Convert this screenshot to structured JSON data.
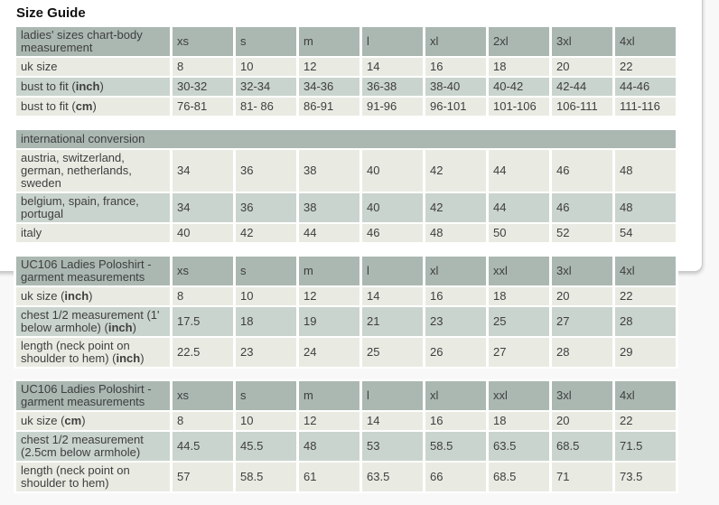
{
  "header": {
    "title": "Size Guide"
  },
  "colors": {
    "page_bg": "#f8f8f8",
    "panel_bg": "#ffffff",
    "panel_border": "#c9c9c9",
    "table_header_bg": "#abb8b2",
    "row_light": "#e9ebe3",
    "row_medium": "#cad4ce",
    "text": "#3e3e3e",
    "title": "#111111"
  },
  "tables": [
    {
      "name": "ladies-sizes-body-measurement",
      "header_label": [
        {
          "t": "ladies' sizes chart-body\nmeasurement"
        }
      ],
      "columns": [
        "xs",
        "s",
        "m",
        "l",
        "xl",
        "2xl",
        "3xl",
        "4xl"
      ],
      "rows": [
        {
          "label": [
            {
              "t": "uk size"
            }
          ],
          "values": [
            "8",
            "10",
            "12",
            "14",
            "16",
            "18",
            "20",
            "22"
          ]
        },
        {
          "label": [
            {
              "t": "bust to fit ("
            },
            {
              "t": "inch",
              "b": true
            },
            {
              "t": ")"
            }
          ],
          "values": [
            "30-32",
            "32-34",
            "34-36",
            "36-38",
            "38-40",
            "40-42",
            "42-44",
            "44-46"
          ]
        },
        {
          "label": [
            {
              "t": "bust to fit ("
            },
            {
              "t": "cm",
              "b": true
            },
            {
              "t": ")"
            }
          ],
          "values": [
            "76-81",
            "81- 86",
            "86-91",
            "91-96",
            "96-101",
            "101-106",
            "106-111",
            "111-116"
          ]
        }
      ]
    },
    {
      "name": "international-conversion",
      "full_header": [
        {
          "t": "international conversion"
        }
      ],
      "rows": [
        {
          "label": [
            {
              "t": "austria, switzerland,\ngerman, netherlands,\nsweden"
            }
          ],
          "values": [
            "34",
            "36",
            "38",
            "40",
            "42",
            "44",
            "46",
            "48"
          ]
        },
        {
          "label": [
            {
              "t": "belgium, spain, france,\nportugal"
            }
          ],
          "values": [
            "34",
            "36",
            "38",
            "40",
            "42",
            "44",
            "46",
            "48"
          ]
        },
        {
          "label": [
            {
              "t": "italy"
            }
          ],
          "values": [
            "40",
            "42",
            "44",
            "46",
            "48",
            "50",
            "52",
            "54"
          ]
        }
      ]
    },
    {
      "name": "uc106-garment-measurements-inch",
      "header_label": [
        {
          "t": "UC106 Ladies Poloshirt -\ngarment measurements"
        }
      ],
      "columns": [
        "xs",
        "s",
        "m",
        "l",
        "xl",
        "xxl",
        "3xl",
        "4xl"
      ],
      "rows": [
        {
          "label": [
            {
              "t": "uk size ("
            },
            {
              "t": "inch",
              "b": true
            },
            {
              "t": ")"
            }
          ],
          "values": [
            "8",
            "10",
            "12",
            "14",
            "16",
            "18",
            "20",
            "22"
          ]
        },
        {
          "label": [
            {
              "t": "chest 1/2 measurement (1'\nbelow armhole) ("
            },
            {
              "t": "inch",
              "b": true
            },
            {
              "t": ")"
            }
          ],
          "values": [
            "17.5",
            "18",
            "19",
            "21",
            "23",
            "25",
            "27",
            "28"
          ]
        },
        {
          "label": [
            {
              "t": "length (neck point on\nshoulder to hem) ("
            },
            {
              "t": "inch",
              "b": true
            },
            {
              "t": ")"
            }
          ],
          "values": [
            "22.5",
            "23",
            "24",
            "25",
            "26",
            "27",
            "28",
            "29"
          ]
        }
      ]
    },
    {
      "name": "uc106-garment-measurements-cm",
      "header_label": [
        {
          "t": "UC106 Ladies Poloshirt -\ngarment measurements"
        }
      ],
      "columns": [
        "xs",
        "s",
        "m",
        "l",
        "xl",
        "xxl",
        "3xl",
        "4xl"
      ],
      "rows": [
        {
          "label": [
            {
              "t": "uk size ("
            },
            {
              "t": "cm",
              "b": true
            },
            {
              "t": ")"
            }
          ],
          "values": [
            "8",
            "10",
            "12",
            "14",
            "16",
            "18",
            "20",
            "22"
          ]
        },
        {
          "label": [
            {
              "t": "chest 1/2 measurement\n(2.5cm below armhole)"
            }
          ],
          "values": [
            "44.5",
            "45.5",
            "48",
            "53",
            "58.5",
            "63.5",
            "68.5",
            "71.5"
          ]
        },
        {
          "label": [
            {
              "t": "length (neck point on\nshoulder to hem)"
            }
          ],
          "values": [
            "57",
            "58.5",
            "61",
            "63.5",
            "66",
            "68.5",
            "71",
            "73.5"
          ]
        }
      ]
    }
  ]
}
